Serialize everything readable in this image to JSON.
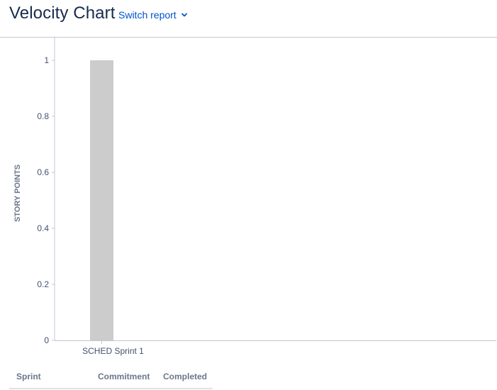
{
  "header": {
    "title": "Velocity Chart",
    "switch_report_label": "Switch report",
    "switch_icon": "chevron-down-icon"
  },
  "colors": {
    "bar": "#cccccc",
    "title": "#172b4d",
    "link": "#0052cc",
    "axis_label": "#6b778c"
  },
  "chart_data": {
    "type": "bar",
    "categories": [
      "SCHED Sprint 1"
    ],
    "values": [
      1
    ],
    "ylabel": "STORY POINTS",
    "ylim": [
      0,
      1
    ],
    "yticks": [
      0,
      0.2,
      0.4,
      0.6,
      0.8,
      1
    ],
    "grid": false,
    "legend": "none"
  },
  "table": {
    "columns": [
      "Sprint",
      "Commitment",
      "Completed"
    ]
  }
}
